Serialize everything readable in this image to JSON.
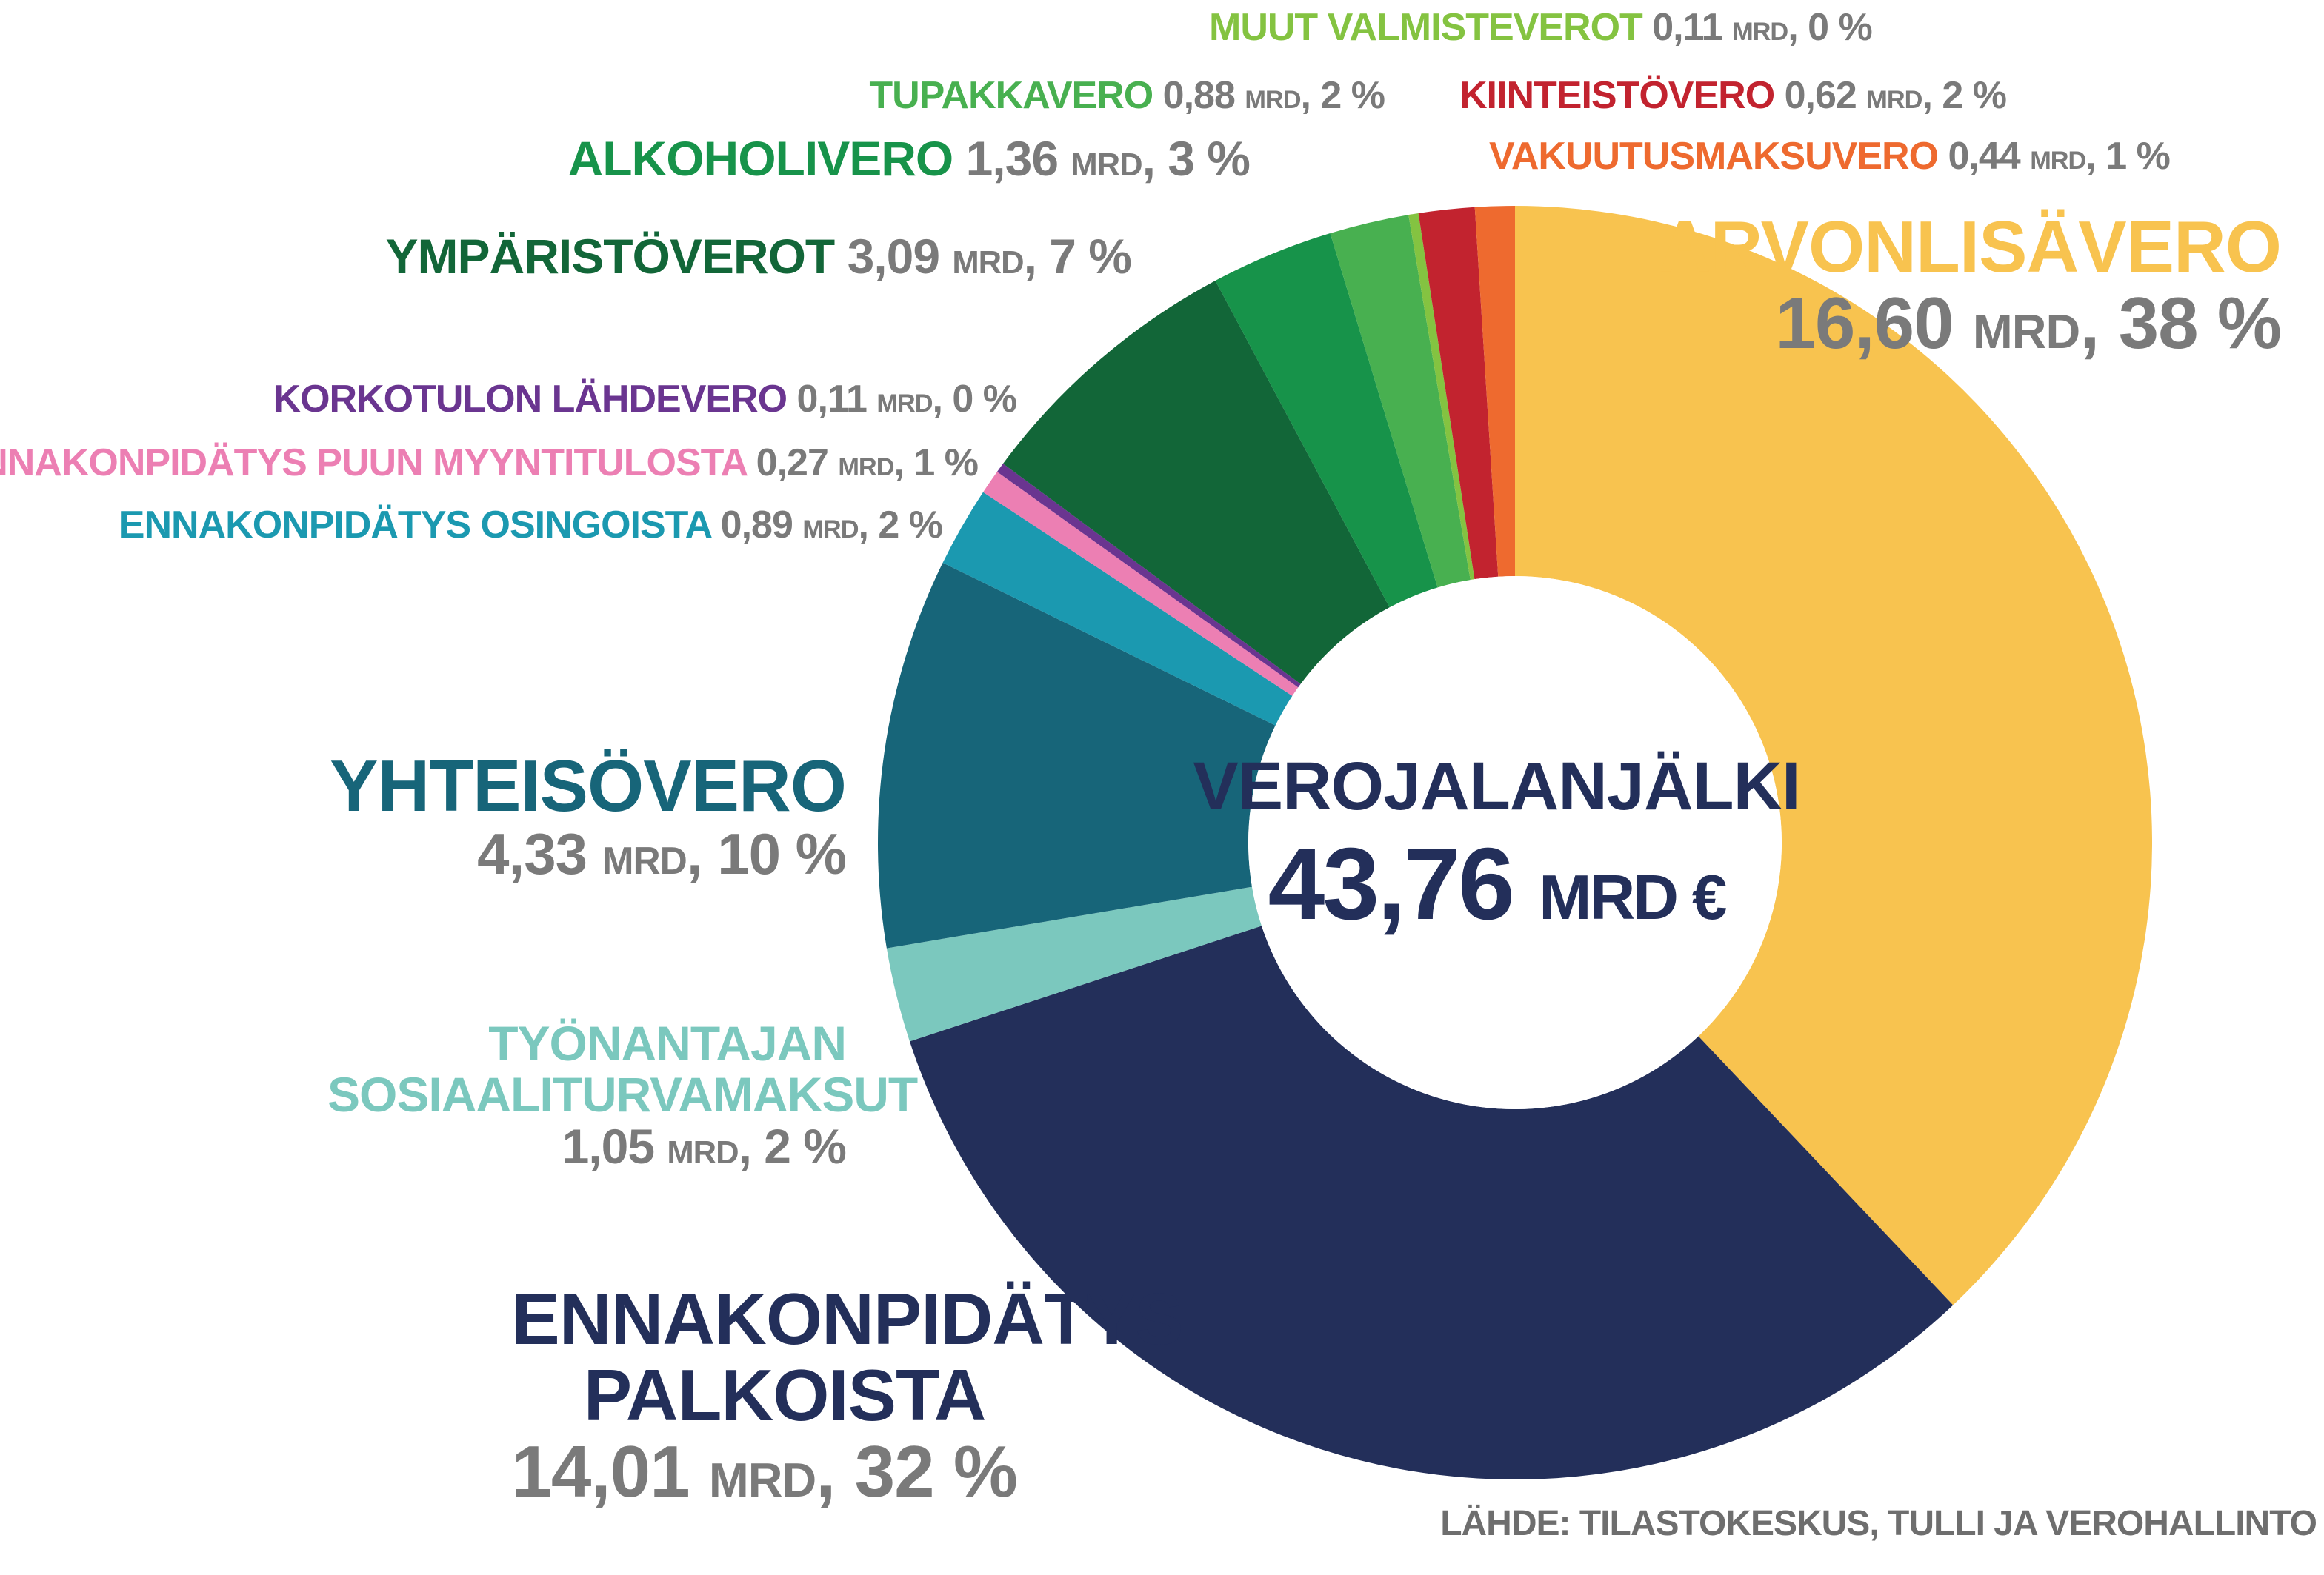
{
  "chart_data": {
    "type": "pie",
    "donut": true,
    "title": "",
    "center": {
      "title": "VEROJALANJÄLKI",
      "value": "43,76",
      "unit": "MRD €"
    },
    "total": 43.76,
    "slices": [
      {
        "key": "arvonlisavero",
        "name": "ARVONLISÄVERO",
        "value": 16.6,
        "value_text": "16,60",
        "percent_text": "38 %",
        "color": "#f8c34f"
      },
      {
        "key": "ennakonpidatys-palkoista",
        "name": "ENNAKONPIDÄTYS PALKOISTA",
        "value": 14.01,
        "value_text": "14,01",
        "percent_text": "32 %",
        "color": "#232f5a"
      },
      {
        "key": "tyonantajan-sosiaaliturvamaksut",
        "name": "TYÖNANTAJAN SOSIAALITURVAMAKSUT",
        "value": 1.05,
        "value_text": "1,05",
        "percent_text": "2 %",
        "color": "#7bc8be"
      },
      {
        "key": "yhteisovero",
        "name": "YHTEISÖVERO",
        "value": 4.33,
        "value_text": "4,33",
        "percent_text": "10 %",
        "color": "#176579"
      },
      {
        "key": "ennakonpidatys-osingoista",
        "name": "ENNAKONPIDÄTYS OSINGOISTA",
        "value": 0.89,
        "value_text": "0,89",
        "percent_text": "2 %",
        "color": "#1b99b0"
      },
      {
        "key": "ennakonpidatys-puun-myyntitulosta",
        "name": "ENNAKONPIDÄTYS PUUN MYYNTITULOSTA",
        "value": 0.27,
        "value_text": "0,27",
        "percent_text": "1 %",
        "color": "#ec7fb3"
      },
      {
        "key": "korkotulon-lahdevero",
        "name": "KORKOTULON LÄHDEVERO",
        "value": 0.11,
        "value_text": "0,11",
        "percent_text": "0 %",
        "color": "#6a3590"
      },
      {
        "key": "ymparistoverot",
        "name": "YMPÄRISTÖVEROT",
        "value": 3.09,
        "value_text": "3,09",
        "percent_text": "7 %",
        "color": "#126638"
      },
      {
        "key": "alkoholivero",
        "name": "ALKOHOLIVERO",
        "value": 1.36,
        "value_text": "1,36",
        "percent_text": "3 %",
        "color": "#17934a"
      },
      {
        "key": "tupakkavero",
        "name": "TUPAKKAVERO",
        "value": 0.88,
        "value_text": "0,88",
        "percent_text": "2 %",
        "color": "#48b050"
      },
      {
        "key": "muut-valmisteverot",
        "name": "MUUT VALMISTEVEROT",
        "value": 0.11,
        "value_text": "0,11",
        "percent_text": "0 %",
        "color": "#84c341"
      },
      {
        "key": "kiinteistovero",
        "name": "KIINTEISTÖVERO",
        "value": 0.62,
        "value_text": "0,62",
        "percent_text": "2 %",
        "color": "#c2232f"
      },
      {
        "key": "vakuutusmaksuvero",
        "name": "VAKUUTUSMAKSUVERO",
        "value": 0.44,
        "value_text": "0,44",
        "percent_text": "1 %",
        "color": "#ee6a2f"
      }
    ],
    "unit_label": "MRD",
    "legend": "labels-around"
  },
  "source_text": "LÄHDE: TILASTOKESKUS, TULLI JA VEROHALLINTO"
}
